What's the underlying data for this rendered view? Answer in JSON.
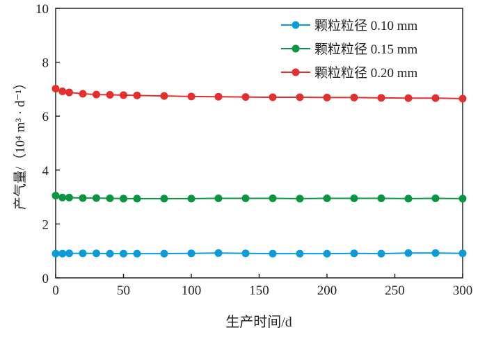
{
  "chart_data": {
    "type": "line",
    "title": "",
    "xlabel": "生产时间/d",
    "ylabel": "产气量/（10⁴ m³ · d⁻¹）",
    "xlim": [
      0,
      300
    ],
    "ylim": [
      0,
      10
    ],
    "xticks": [
      0,
      50,
      100,
      150,
      200,
      250,
      300
    ],
    "yticks": [
      0,
      2,
      4,
      6,
      8,
      10
    ],
    "grid": false,
    "legend_position": "top-right",
    "x": [
      0,
      5,
      10,
      20,
      30,
      40,
      50,
      60,
      80,
      100,
      120,
      140,
      160,
      180,
      200,
      220,
      240,
      260,
      280,
      300
    ],
    "series": [
      {
        "name": "颗粒粒径 0.10 mm",
        "color": "#0a9bd8",
        "values": [
          0.9,
          0.9,
          0.91,
          0.91,
          0.91,
          0.9,
          0.9,
          0.9,
          0.9,
          0.91,
          0.92,
          0.91,
          0.9,
          0.9,
          0.9,
          0.91,
          0.9,
          0.92,
          0.92,
          0.91
        ]
      },
      {
        "name": "颗粒粒径 0.15 mm",
        "color": "#0a9640",
        "values": [
          3.05,
          2.98,
          2.98,
          2.96,
          2.96,
          2.95,
          2.94,
          2.94,
          2.94,
          2.94,
          2.95,
          2.95,
          2.95,
          2.94,
          2.95,
          2.95,
          2.95,
          2.94,
          2.95,
          2.94
        ]
      },
      {
        "name": "颗粒粒径 0.20 mm",
        "color": "#e3302f",
        "values": [
          7.02,
          6.92,
          6.88,
          6.83,
          6.8,
          6.79,
          6.78,
          6.77,
          6.75,
          6.73,
          6.72,
          6.71,
          6.7,
          6.7,
          6.69,
          6.69,
          6.68,
          6.67,
          6.67,
          6.65
        ]
      }
    ]
  }
}
